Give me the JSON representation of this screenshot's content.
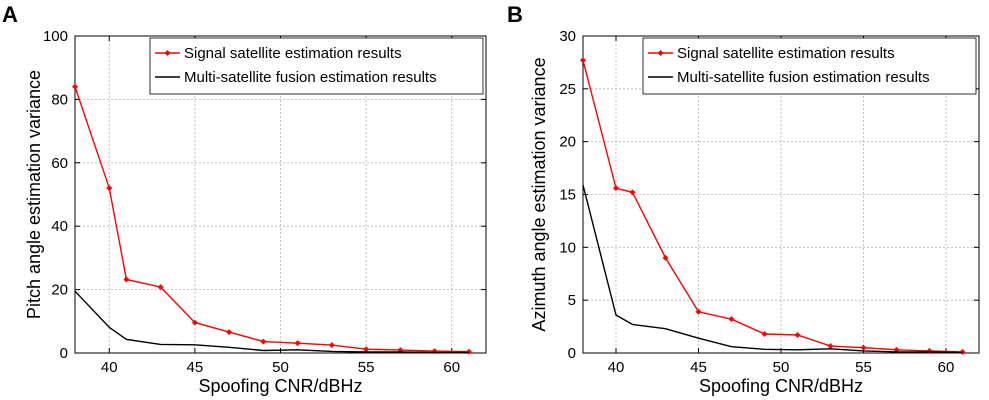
{
  "panels": [
    {
      "letter": "A",
      "chart_data": {
        "type": "line",
        "xlabel": "Spoofing CNR/dBHz",
        "ylabel": "Pitch angle estimation variance",
        "xlim": [
          38,
          62
        ],
        "ylim": [
          0,
          100
        ],
        "xticks": [
          40,
          45,
          50,
          55,
          60
        ],
        "yticks": [
          0,
          20,
          40,
          60,
          80,
          100
        ],
        "grid": true,
        "legend": "top-right",
        "series": [
          {
            "name": "Signal satellite estimation results",
            "color": "#ff0000",
            "marker": "diamond",
            "x": [
              38,
              40,
              41,
              43,
              45,
              47,
              49,
              51,
              53,
              55,
              57,
              59,
              61
            ],
            "y": [
              84,
              52,
              23.2,
              20.8,
              9.6,
              6.6,
              3.6,
              3.1,
              2.5,
              1.2,
              0.9,
              0.6,
              0.4
            ]
          },
          {
            "name": "Multi-satellite fusion estimation results",
            "color": "#000000",
            "marker": "none",
            "x": [
              38,
              40,
              41,
              43,
              45,
              47,
              49,
              51,
              53,
              55,
              57,
              59,
              61
            ],
            "y": [
              19.5,
              8.1,
              4.3,
              2.7,
              2.6,
              1.8,
              0.8,
              1.0,
              0.5,
              0.3,
              0.3,
              0.2,
              0.2
            ]
          }
        ]
      }
    },
    {
      "letter": "B",
      "chart_data": {
        "type": "line",
        "xlabel": "Spoofing CNR/dBHz",
        "ylabel": "Azimuth angle estimation variance",
        "xlim": [
          38,
          62
        ],
        "ylim": [
          0,
          30
        ],
        "xticks": [
          40,
          45,
          50,
          55,
          60
        ],
        "yticks": [
          0,
          5,
          10,
          15,
          20,
          25,
          30
        ],
        "grid": true,
        "legend": "top-right",
        "series": [
          {
            "name": "Signal satellite estimation results",
            "color": "#ff0000",
            "marker": "diamond",
            "x": [
              38,
              40,
              41,
              43,
              45,
              47,
              49,
              51,
              53,
              55,
              57,
              59,
              61
            ],
            "y": [
              27.7,
              15.6,
              15.2,
              9.0,
              3.9,
              3.2,
              1.8,
              1.7,
              0.65,
              0.5,
              0.3,
              0.2,
              0.1
            ]
          },
          {
            "name": "Multi-satellite fusion estimation results",
            "color": "#000000",
            "marker": "none",
            "x": [
              38,
              40,
              41,
              43,
              45,
              47,
              49,
              51,
              53,
              55,
              57,
              59,
              61
            ],
            "y": [
              15.9,
              3.6,
              2.7,
              2.3,
              1.4,
              0.6,
              0.35,
              0.3,
              0.4,
              0.2,
              0.1,
              0.1,
              0.05
            ]
          }
        ]
      }
    }
  ]
}
